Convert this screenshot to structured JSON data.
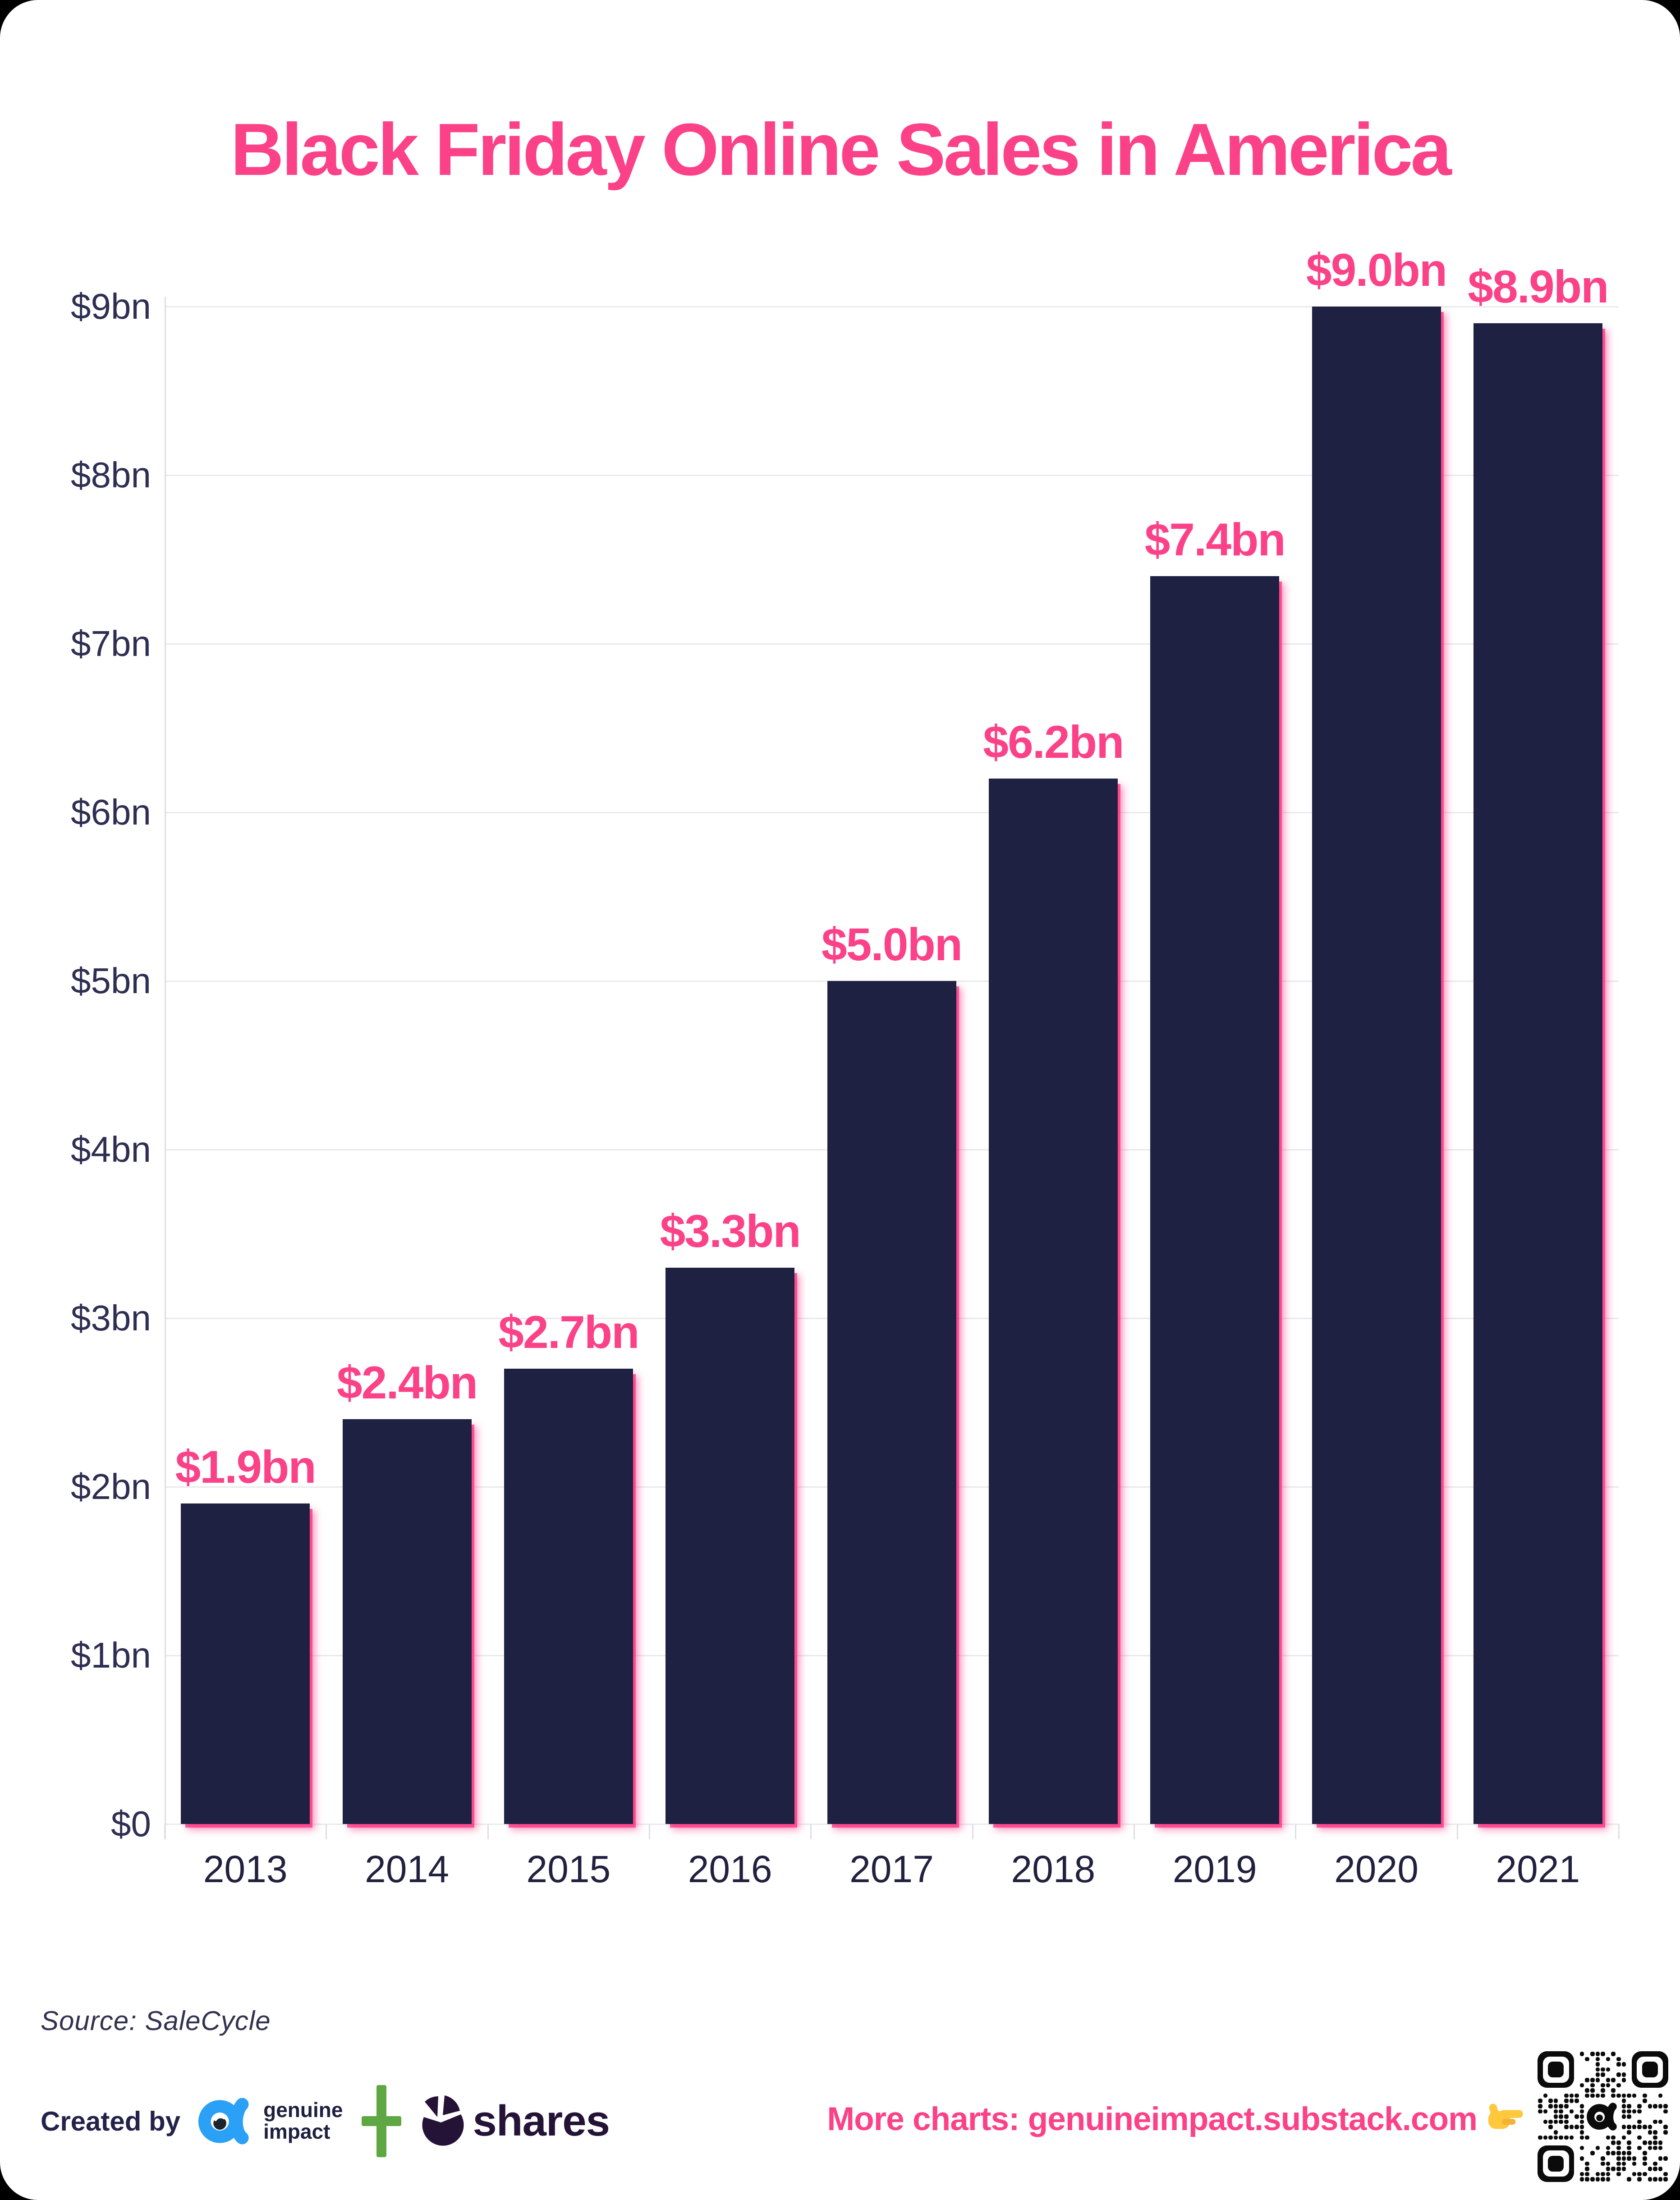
{
  "page": {
    "title": "Black Friday Online Sales in America"
  },
  "chart_data": {
    "type": "bar",
    "title": "Black Friday Online Sales in America",
    "categories": [
      "2013",
      "2014",
      "2015",
      "2016",
      "2017",
      "2018",
      "2019",
      "2020",
      "2021"
    ],
    "values": [
      1.9,
      2.4,
      2.7,
      3.3,
      5.0,
      6.2,
      7.4,
      9.0,
      8.9
    ],
    "value_labels": [
      "$1.9bn",
      "$2.4bn",
      "$2.7bn",
      "$3.3bn",
      "$5.0bn",
      "$6.2bn",
      "$7.4bn",
      "$9.0bn",
      "$8.9bn"
    ],
    "y_ticks": [
      "$0",
      "$1bn",
      "$2bn",
      "$3bn",
      "$4bn",
      "$5bn",
      "$6bn",
      "$7bn",
      "$8bn",
      "$9bn"
    ],
    "ylim": [
      0,
      9
    ],
    "xlabel": "",
    "ylabel": "",
    "grid": true,
    "legend": false
  },
  "source": {
    "text": "Source: SaleCycle"
  },
  "footer": {
    "created_by": "Created by",
    "genuine_impact_line1": "genuine",
    "genuine_impact_line2": "impact",
    "plus_sign": "+",
    "shares_label": "shares",
    "more_charts": "More charts: genuineimpact.substack.com",
    "pointer_emoji": "👉"
  },
  "colors": {
    "accent_pink": "#fb4289",
    "glow_pink": "#fc2d7d",
    "bar_navy": "#1f2142",
    "axis_text": "#2e2e52",
    "year_text": "#21213f",
    "grid_line": "#e9e9ec",
    "axis_line": "#dfdfe4",
    "source_text": "#323250",
    "created_text": "#23234a",
    "logo_blue": "#2aa0f6",
    "logo_green": "#5fa743",
    "shares_dark": "#251337",
    "hand_yellow": "#ffc83d"
  }
}
